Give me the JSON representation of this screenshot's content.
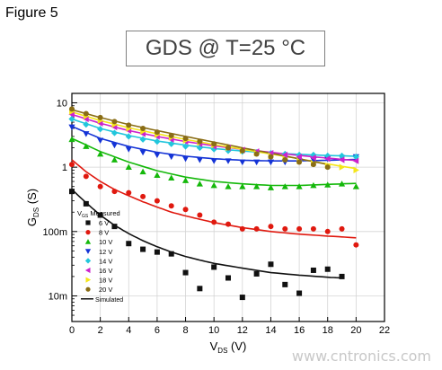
{
  "figure_label": "Figure 5",
  "chart_data": {
    "type": "scatter",
    "title": "GDS @ T=25 °C",
    "xlabel": "V",
    "xlabel_sub": "DS",
    "xlabel_unit": " (V)",
    "ylabel": "G",
    "ylabel_sub": "DS",
    "ylabel_unit": " (S)",
    "x_range": [
      0,
      22
    ],
    "x_ticks": [
      0,
      2,
      4,
      6,
      8,
      10,
      12,
      14,
      16,
      18,
      20,
      22
    ],
    "y_scale": "log",
    "y_range": [
      0.004,
      14
    ],
    "y_ticks": [
      {
        "value": 0.01,
        "label": "10m"
      },
      {
        "value": 0.1,
        "label": "100m"
      },
      {
        "value": 1,
        "label": "1"
      },
      {
        "value": 10,
        "label": "10"
      }
    ],
    "grid": true,
    "legend": {
      "placement": "bottom-left",
      "header": "V",
      "header_sub": "GS",
      "header_suffix": " Measured",
      "simulated_label": "Simulated"
    },
    "series": [
      {
        "name": "6 V",
        "color": "#111111",
        "marker": "square",
        "x": [
          0,
          1,
          2,
          3,
          4,
          5,
          6,
          7,
          8,
          9,
          10,
          11,
          12,
          13,
          14,
          15,
          16,
          17,
          18,
          19
        ],
        "y": [
          0.42,
          0.27,
          0.18,
          0.12,
          0.065,
          0.053,
          0.048,
          0.045,
          0.023,
          0.013,
          0.028,
          0.019,
          0.0095,
          0.022,
          0.031,
          0.015,
          0.011,
          0.025,
          0.026,
          0.02
        ],
        "sim": [
          [
            0,
            0.45
          ],
          [
            1,
            0.28
          ],
          [
            2,
            0.18
          ],
          [
            3,
            0.125
          ],
          [
            4,
            0.093
          ],
          [
            5,
            0.072
          ],
          [
            6,
            0.058
          ],
          [
            7,
            0.048
          ],
          [
            8,
            0.041
          ],
          [
            9,
            0.036
          ],
          [
            10,
            0.032
          ],
          [
            12,
            0.027
          ],
          [
            14,
            0.023
          ],
          [
            16,
            0.021
          ],
          [
            18,
            0.0195
          ],
          [
            19,
            0.019
          ]
        ]
      },
      {
        "name": "8 V",
        "color": "#e0190f",
        "marker": "circle",
        "x": [
          0,
          1,
          2,
          3,
          4,
          5,
          6,
          7,
          8,
          9,
          10,
          11,
          12,
          13,
          14,
          15,
          16,
          17,
          18,
          19,
          20
        ],
        "y": [
          1.1,
          0.72,
          0.5,
          0.42,
          0.4,
          0.35,
          0.3,
          0.25,
          0.22,
          0.18,
          0.14,
          0.13,
          0.11,
          0.11,
          0.12,
          0.11,
          0.11,
          0.11,
          0.1,
          0.11,
          0.062
        ],
        "sim": [
          [
            0,
            1.3
          ],
          [
            1,
            0.85
          ],
          [
            2,
            0.6
          ],
          [
            3,
            0.45
          ],
          [
            4,
            0.36
          ],
          [
            5,
            0.29
          ],
          [
            6,
            0.24
          ],
          [
            7,
            0.2
          ],
          [
            8,
            0.175
          ],
          [
            9,
            0.155
          ],
          [
            10,
            0.138
          ],
          [
            12,
            0.115
          ],
          [
            14,
            0.1
          ],
          [
            16,
            0.091
          ],
          [
            18,
            0.085
          ],
          [
            20,
            0.08
          ]
        ]
      },
      {
        "name": "10 V",
        "color": "#14b80a",
        "marker": "triangle-up",
        "x": [
          0,
          1,
          2,
          3,
          4,
          5,
          6,
          7,
          8,
          9,
          10,
          11,
          12,
          13,
          14,
          15,
          16,
          17,
          18,
          19,
          20
        ],
        "y": [
          2.7,
          2.1,
          1.6,
          1.3,
          1.0,
          0.85,
          0.75,
          0.68,
          0.62,
          0.55,
          0.52,
          0.5,
          0.5,
          0.5,
          0.48,
          0.5,
          0.5,
          0.52,
          0.53,
          0.55,
          0.5
        ],
        "sim": [
          [
            0,
            2.8
          ],
          [
            2,
            1.75
          ],
          [
            4,
            1.2
          ],
          [
            6,
            0.88
          ],
          [
            8,
            0.7
          ],
          [
            10,
            0.6
          ],
          [
            12,
            0.55
          ],
          [
            14,
            0.52
          ],
          [
            16,
            0.52
          ],
          [
            18,
            0.54
          ],
          [
            20,
            0.56
          ]
        ]
      },
      {
        "name": "12 V",
        "color": "#1433d6",
        "marker": "triangle-down",
        "x": [
          0,
          1,
          2,
          3,
          4,
          5,
          6,
          7,
          8,
          9,
          10,
          11,
          12,
          13,
          14,
          15,
          16,
          17,
          18,
          19,
          20
        ],
        "y": [
          4.2,
          3.3,
          2.6,
          2.2,
          1.9,
          1.7,
          1.55,
          1.45,
          1.35,
          1.3,
          1.25,
          1.25,
          1.2,
          1.2,
          1.2,
          1.2,
          1.25,
          1.3,
          1.35,
          1.4,
          1.45
        ],
        "sim": [
          [
            0,
            4.3
          ],
          [
            2,
            2.8
          ],
          [
            4,
            2.1
          ],
          [
            6,
            1.7
          ],
          [
            8,
            1.48
          ],
          [
            10,
            1.35
          ],
          [
            12,
            1.28
          ],
          [
            14,
            1.25
          ],
          [
            16,
            1.25
          ],
          [
            18,
            1.28
          ],
          [
            20,
            1.32
          ]
        ]
      },
      {
        "name": "14 V",
        "color": "#22c6dc",
        "marker": "diamond",
        "x": [
          0,
          1,
          2,
          3,
          4,
          5,
          6,
          7,
          8,
          9,
          10,
          11,
          12,
          13,
          14,
          15,
          16,
          17,
          18,
          19,
          20
        ],
        "y": [
          5.6,
          4.6,
          3.9,
          3.4,
          3.0,
          2.7,
          2.5,
          2.3,
          2.1,
          2.0,
          1.9,
          1.8,
          1.75,
          1.7,
          1.65,
          1.6,
          1.55,
          1.55,
          1.5,
          1.5,
          1.45
        ],
        "sim": [
          [
            0,
            5.6
          ],
          [
            2,
            4.0
          ],
          [
            4,
            3.1
          ],
          [
            6,
            2.55
          ],
          [
            8,
            2.2
          ],
          [
            10,
            1.95
          ],
          [
            12,
            1.78
          ],
          [
            14,
            1.66
          ],
          [
            16,
            1.58
          ],
          [
            18,
            1.52
          ],
          [
            20,
            1.48
          ]
        ]
      },
      {
        "name": "16 V",
        "color": "#cc22cc",
        "marker": "triangle-left",
        "x": [
          0,
          1,
          2,
          3,
          4,
          5,
          6,
          7,
          8,
          9,
          10,
          11,
          12,
          13,
          14,
          15,
          16,
          17,
          18,
          19,
          20
        ],
        "y": [
          6.6,
          5.6,
          4.8,
          4.2,
          3.7,
          3.3,
          3.0,
          2.7,
          2.5,
          2.3,
          2.1,
          2.0,
          1.85,
          1.75,
          1.65,
          1.55,
          1.45,
          1.4,
          1.35,
          1.3,
          1.25
        ],
        "sim": [
          [
            0,
            6.6
          ],
          [
            2,
            4.8
          ],
          [
            4,
            3.7
          ],
          [
            6,
            3.0
          ],
          [
            8,
            2.5
          ],
          [
            10,
            2.15
          ],
          [
            12,
            1.9
          ],
          [
            14,
            1.7
          ],
          [
            16,
            1.52
          ],
          [
            18,
            1.38
          ],
          [
            20,
            1.27
          ]
        ]
      },
      {
        "name": "18 V",
        "color": "#f5e61a",
        "marker": "triangle-right",
        "x": [
          0,
          1,
          2,
          3,
          4,
          5,
          6,
          7,
          8,
          9,
          10,
          11,
          12,
          13,
          14,
          15,
          16,
          17,
          18,
          19,
          20
        ],
        "y": [
          7.3,
          6.2,
          5.3,
          4.6,
          4.0,
          3.6,
          3.2,
          2.9,
          2.6,
          2.4,
          2.2,
          2.0,
          1.8,
          1.65,
          1.5,
          1.35,
          1.25,
          1.15,
          1.05,
          1.0,
          0.9
        ],
        "sim": [
          [
            0,
            7.2
          ],
          [
            2,
            5.3
          ],
          [
            4,
            4.1
          ],
          [
            6,
            3.3
          ],
          [
            8,
            2.7
          ],
          [
            10,
            2.25
          ],
          [
            12,
            1.9
          ],
          [
            14,
            1.6
          ],
          [
            16,
            1.35
          ],
          [
            18,
            1.12
          ],
          [
            20,
            0.95
          ]
        ]
      },
      {
        "name": "20 V",
        "color": "#8a6d16",
        "marker": "circle",
        "x": [
          0,
          1,
          2,
          3,
          4,
          5,
          6,
          7,
          8,
          9,
          10,
          11,
          12,
          13,
          14,
          15,
          16,
          17,
          18
        ],
        "y": [
          8.0,
          6.8,
          5.9,
          5.1,
          4.5,
          4.0,
          3.5,
          3.1,
          2.8,
          2.5,
          2.3,
          2.0,
          1.8,
          1.6,
          1.45,
          1.3,
          1.2,
          1.1,
          1.0
        ],
        "sim": [
          [
            0,
            7.8
          ],
          [
            2,
            5.9
          ],
          [
            4,
            4.6
          ],
          [
            6,
            3.7
          ],
          [
            8,
            3.0
          ],
          [
            10,
            2.45
          ],
          [
            12,
            2.0
          ],
          [
            14,
            1.65
          ],
          [
            16,
            1.35
          ],
          [
            18,
            1.1
          ]
        ]
      }
    ]
  },
  "watermark": "www.cntronics.com"
}
